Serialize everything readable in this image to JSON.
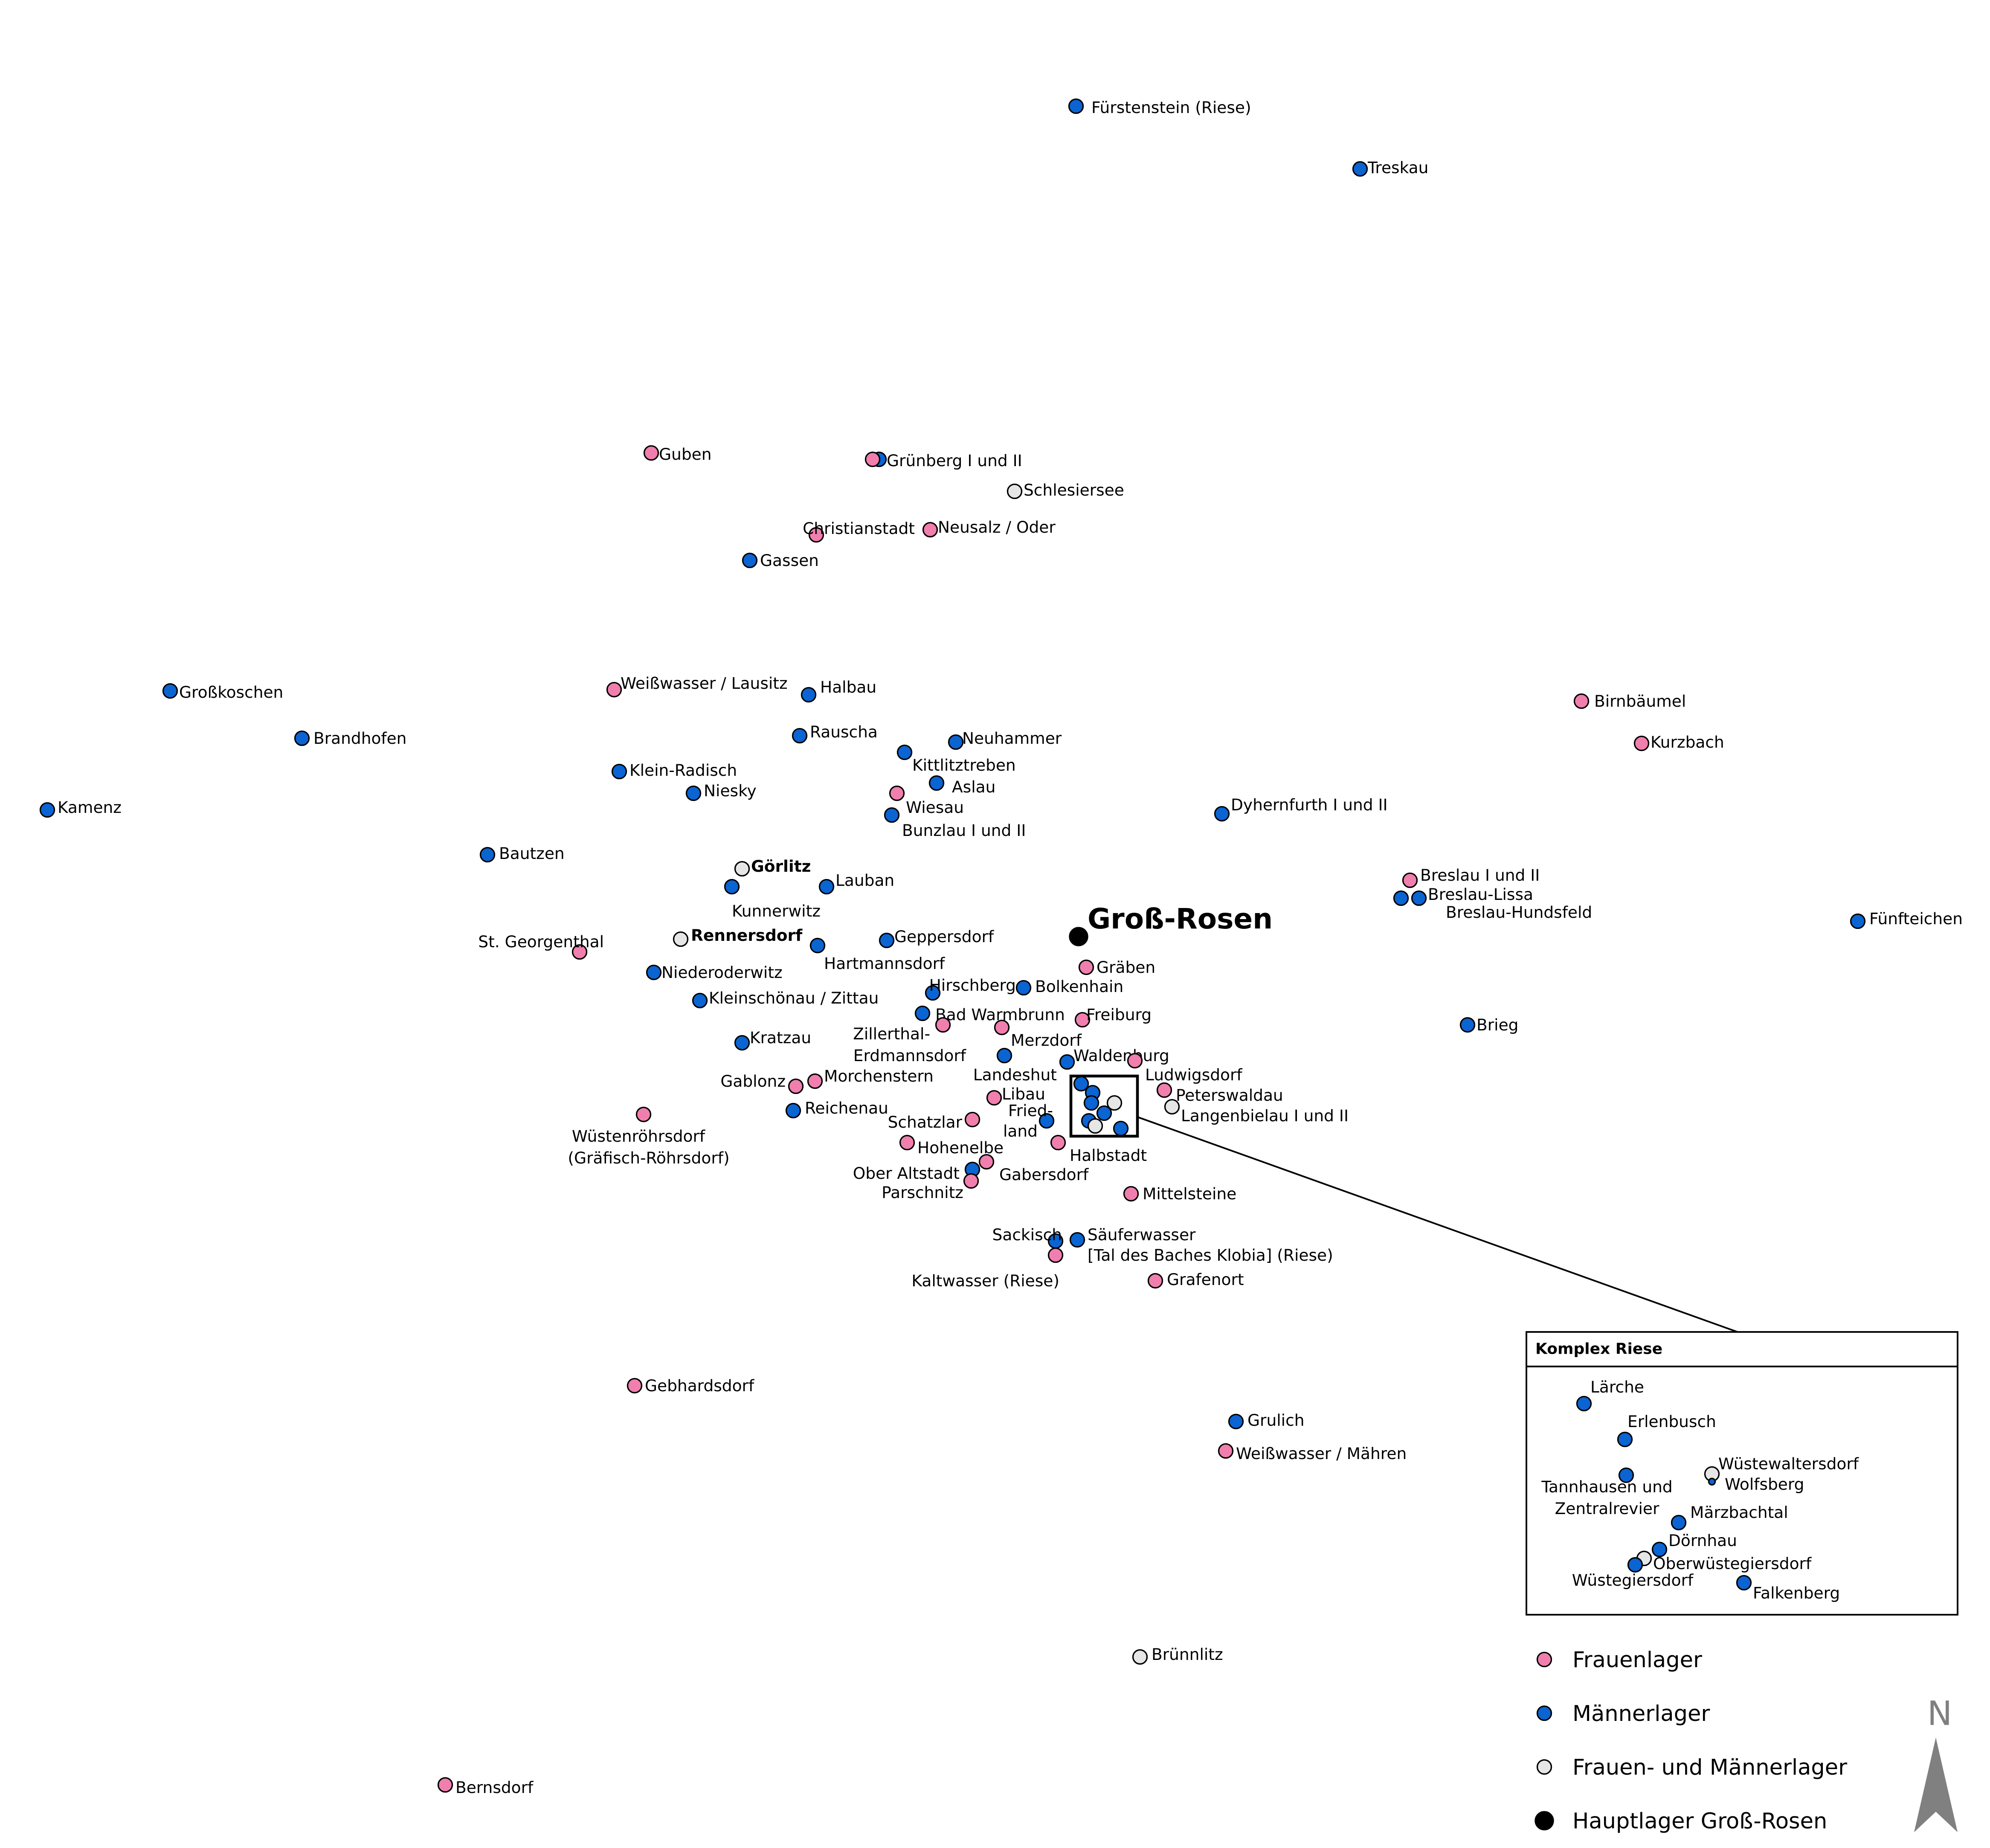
{
  "colors": {
    "frauen": "#f07fae",
    "maenner": "#0a64d2",
    "gemischt": "#e6e6e6",
    "haupt": "#000000",
    "north": "#808080"
  },
  "main_camp": {
    "label": "Groß-Rosen"
  },
  "inset": {
    "title": "Komplex Riese"
  },
  "north": {
    "label": "N"
  },
  "legend": [
    {
      "type": "frauen",
      "label": "Frauenlager"
    },
    {
      "type": "maenner",
      "label": "Männerlager"
    },
    {
      "type": "gemischt",
      "label": "Frauen- und Männerlager"
    },
    {
      "type": "haupt",
      "label": "Hauptlager Groß-Rosen"
    }
  ],
  "camps": [
    {
      "label": "Fürstenstein (Riese)",
      "type": "maenner"
    },
    {
      "label": "Treskau",
      "type": "maenner"
    },
    {
      "label": "Guben",
      "type": "frauen"
    },
    {
      "label": "Grünberg I und II",
      "type": "frauen"
    },
    {
      "label": "Schlesiersee",
      "type": "gemischt"
    },
    {
      "label": "Christianstadt",
      "type": "frauen"
    },
    {
      "label": "Neusalz / Oder",
      "type": "frauen"
    },
    {
      "label": "Gassen",
      "type": "maenner"
    },
    {
      "label": "Großkoschen",
      "type": "maenner"
    },
    {
      "label": "Weißwasser / Lausitz",
      "type": "frauen"
    },
    {
      "label": "Halbau",
      "type": "maenner"
    },
    {
      "label": "Birnbäumel",
      "type": "frauen"
    },
    {
      "label": "Brandhofen",
      "type": "maenner"
    },
    {
      "label": "Rauscha",
      "type": "maenner"
    },
    {
      "label": "Neuhammer",
      "type": "maenner"
    },
    {
      "label": "Kurzbach",
      "type": "frauen"
    },
    {
      "label": "Kittlitztreben",
      "type": "maenner"
    },
    {
      "label": "Klein-Radisch",
      "type": "maenner"
    },
    {
      "label": "Aslau",
      "type": "maenner"
    },
    {
      "label": "Niesky",
      "type": "maenner"
    },
    {
      "label": "Wiesau",
      "type": "frauen"
    },
    {
      "label": "Kamenz",
      "type": "maenner"
    },
    {
      "label": "Dyhernfurth I und II",
      "type": "maenner"
    },
    {
      "label": "Bunzlau I und II",
      "type": "maenner"
    },
    {
      "label": "Bautzen",
      "type": "maenner"
    },
    {
      "label": "Görlitz",
      "type": "gemischt"
    },
    {
      "label": "Breslau I und II",
      "type": "frauen"
    },
    {
      "label": "Lauban",
      "type": "maenner"
    },
    {
      "label": "Breslau-Lissa",
      "type": "maenner"
    },
    {
      "label": "Kunnerwitz",
      "type": "maenner"
    },
    {
      "label": "Breslau-Hundsfeld",
      "type": "maenner"
    },
    {
      "label": "Fünfteichen",
      "type": "maenner"
    },
    {
      "label": "Rennersdorf",
      "type": "gemischt"
    },
    {
      "label": "Geppersdorf",
      "type": "maenner"
    },
    {
      "label": "St. Georgenthal",
      "type": "frauen"
    },
    {
      "label": "Hartmannsdorf",
      "type": "maenner"
    },
    {
      "label": "Gräben",
      "type": "frauen"
    },
    {
      "label": "Niederoderwitz",
      "type": "maenner"
    },
    {
      "label": "Hirschberg",
      "type": "maenner"
    },
    {
      "label": "Bolkenhain",
      "type": "maenner"
    },
    {
      "label": "Kleinschönau / Zittau",
      "type": "maenner"
    },
    {
      "label": "Bad Warmbrunn",
      "type": "maenner"
    },
    {
      "label": "Freiburg",
      "type": "frauen"
    },
    {
      "label": "Brieg",
      "type": "maenner"
    },
    {
      "label": "Zillerthal-Erdmannsdorf",
      "type": "frauen"
    },
    {
      "label": "Merzdorf",
      "type": "frauen"
    },
    {
      "label": "Kratzau",
      "type": "maenner"
    },
    {
      "label": "Waldenburg",
      "type": "maenner"
    },
    {
      "label": "Landeshut",
      "type": "maenner"
    },
    {
      "label": "Ludwigsdorf",
      "type": "frauen"
    },
    {
      "label": "Gablonz",
      "type": "frauen"
    },
    {
      "label": "Morchenstern",
      "type": "frauen"
    },
    {
      "label": "Peterswaldau",
      "type": "frauen"
    },
    {
      "label": "Libau",
      "type": "frauen"
    },
    {
      "label": "Reichenau",
      "type": "maenner"
    },
    {
      "label": "Friedland",
      "type": "maenner"
    },
    {
      "label": "Langenbielau I und II",
      "type": "gemischt"
    },
    {
      "label": "Wüstenröhrsdorf (Gräfisch-Röhrsdorf)",
      "type": "frauen"
    },
    {
      "label": "Schatzlar",
      "type": "frauen"
    },
    {
      "label": "Hohenelbe",
      "type": "frauen"
    },
    {
      "label": "Halbstadt",
      "type": "frauen"
    },
    {
      "label": "Ober Altstadt",
      "type": "maenner"
    },
    {
      "label": "Gabersdorf",
      "type": "frauen"
    },
    {
      "label": "Parschnitz",
      "type": "frauen"
    },
    {
      "label": "Mittelsteine",
      "type": "frauen"
    },
    {
      "label": "Sackisch",
      "type": "maenner"
    },
    {
      "label": "Säuferwasser [Tal des Baches Klobia] (Riese)",
      "type": "maenner"
    },
    {
      "label": "Kaltwasser (Riese)",
      "type": "frauen"
    },
    {
      "label": "Grafenort",
      "type": "frauen"
    },
    {
      "label": "Gebhardsdorf",
      "type": "frauen"
    },
    {
      "label": "Grulich",
      "type": "maenner"
    },
    {
      "label": "Weißwasser / Mähren",
      "type": "frauen"
    },
    {
      "label": "Brünnlitz",
      "type": "gemischt"
    },
    {
      "label": "Bernsdorf",
      "type": "frauen"
    }
  ],
  "riese_camps": [
    {
      "label": "Lärche",
      "type": "maenner"
    },
    {
      "label": "Erlenbusch",
      "type": "maenner"
    },
    {
      "label": "Wüstewaltersdorf",
      "type": "gemischt"
    },
    {
      "label": "Tannhausen und Zentralrevier",
      "type": "maenner"
    },
    {
      "label": "Wolfsberg",
      "type": "maenner"
    },
    {
      "label": "Märzbachtal",
      "type": "maenner"
    },
    {
      "label": "Dörnhau",
      "type": "maenner"
    },
    {
      "label": "Oberwüstegiersdorf",
      "type": "gemischt"
    },
    {
      "label": "Wüstegiersdorf",
      "type": "maenner"
    },
    {
      "label": "Falkenberg",
      "type": "maenner"
    }
  ]
}
